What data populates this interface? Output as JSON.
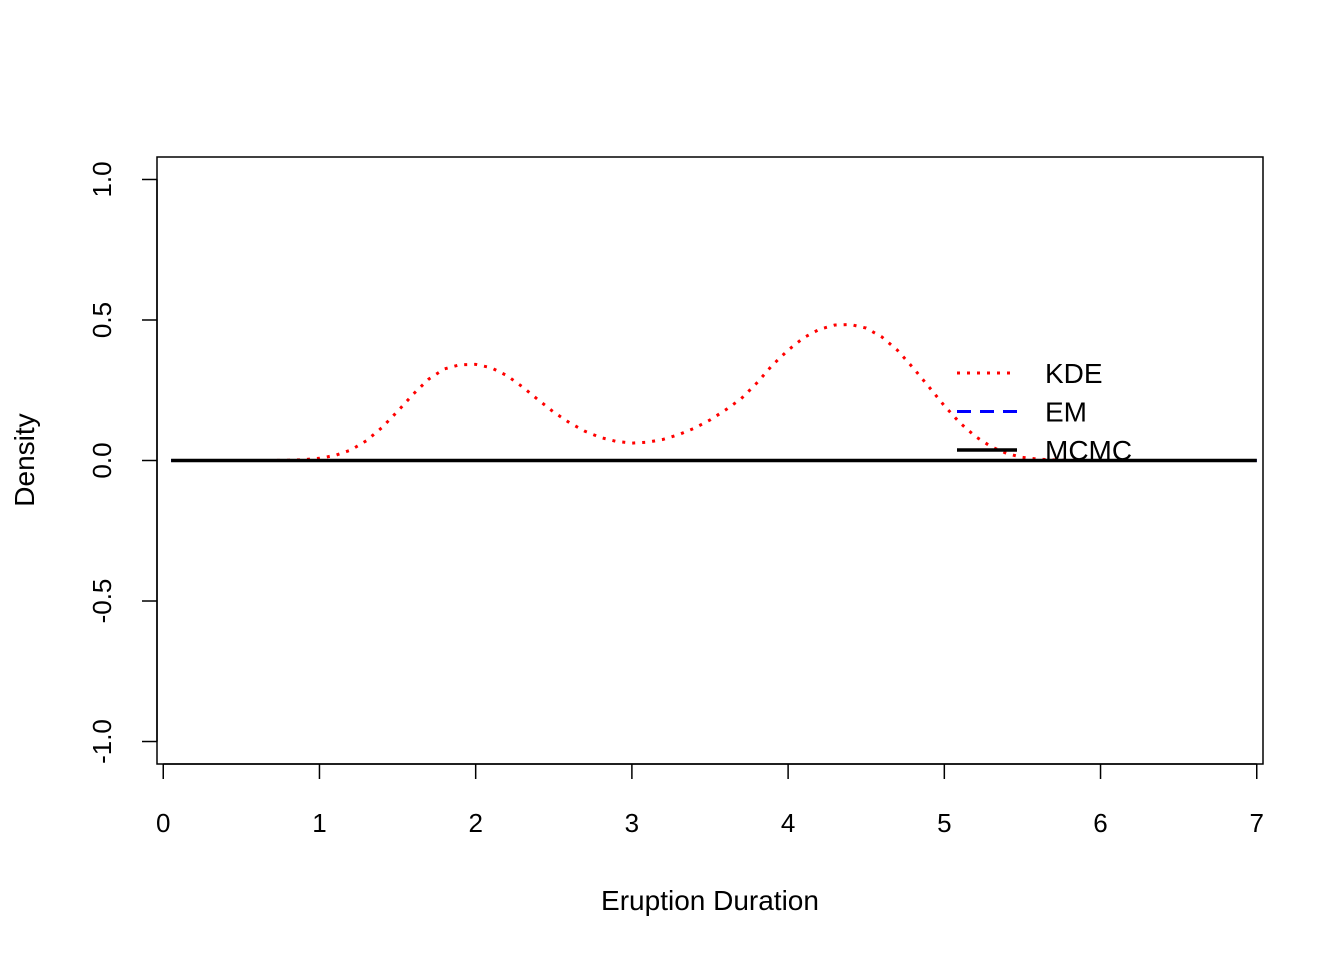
{
  "chart_data": {
    "type": "line",
    "title": "",
    "xlabel": "Eruption Duration",
    "ylabel": "Density",
    "xlim": [
      -0.04,
      7.04
    ],
    "ylim": [
      -1.08,
      1.08
    ],
    "x_ticks": [
      0,
      1,
      2,
      3,
      4,
      5,
      6,
      7
    ],
    "y_ticks": [
      -1.0,
      -0.5,
      0.0,
      0.5,
      1.0
    ],
    "x_tick_labels": [
      "0",
      "1",
      "2",
      "3",
      "4",
      "5",
      "6",
      "7"
    ],
    "y_tick_labels": [
      "-1.0",
      "-0.5",
      "0.0",
      "0.5",
      "1.0"
    ],
    "grid": false,
    "legend_position": "right",
    "series": [
      {
        "name": "KDE",
        "color": "#ff0000",
        "line_style": "dotted",
        "x": [
          0.6,
          0.7,
          0.8,
          0.9,
          1.0,
          1.1,
          1.2,
          1.3,
          1.4,
          1.5,
          1.6,
          1.7,
          1.8,
          1.9,
          2.0,
          2.1,
          2.2,
          2.3,
          2.4,
          2.5,
          2.6,
          2.7,
          2.8,
          2.9,
          3.0,
          3.1,
          3.2,
          3.3,
          3.4,
          3.5,
          3.6,
          3.7,
          3.8,
          3.9,
          4.0,
          4.1,
          4.2,
          4.3,
          4.4,
          4.5,
          4.6,
          4.7,
          4.8,
          4.9,
          5.0,
          5.1,
          5.2,
          5.3,
          5.4,
          5.5,
          5.6,
          5.7,
          5.8,
          5.9,
          6.0,
          6.1
        ],
        "y": [
          0.0,
          0.0,
          0.001,
          0.003,
          0.008,
          0.018,
          0.037,
          0.07,
          0.117,
          0.175,
          0.236,
          0.29,
          0.326,
          0.341,
          0.342,
          0.33,
          0.302,
          0.262,
          0.216,
          0.172,
          0.135,
          0.104,
          0.082,
          0.068,
          0.062,
          0.065,
          0.075,
          0.092,
          0.115,
          0.144,
          0.18,
          0.22,
          0.276,
          0.34,
          0.393,
          0.437,
          0.467,
          0.482,
          0.484,
          0.471,
          0.44,
          0.392,
          0.33,
          0.263,
          0.195,
          0.134,
          0.085,
          0.049,
          0.025,
          0.011,
          0.005,
          0.002,
          0.001,
          0.0,
          0.0,
          0.0
        ]
      },
      {
        "name": "EM",
        "color": "#0000ff",
        "line_style": "dashed",
        "x": [
          0.05,
          7.0
        ],
        "y": [
          0.0,
          0.0
        ]
      },
      {
        "name": "MCMC",
        "color": "#000000",
        "line_style": "solid",
        "x": [
          0.05,
          7.0
        ],
        "y": [
          0.0,
          0.0
        ]
      }
    ]
  }
}
